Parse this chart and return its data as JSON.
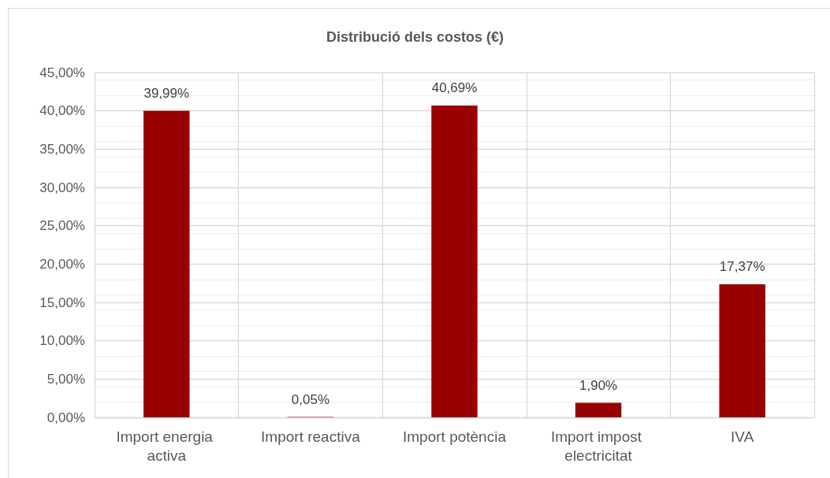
{
  "chart_data": {
    "type": "bar",
    "title": "Distribució dels costos (€)",
    "categories": [
      "Import energia activa",
      "Import reactiva",
      "Import potència",
      "Import impost electricitat",
      "IVA"
    ],
    "values": [
      39.99,
      0.05,
      40.69,
      1.9,
      17.37
    ],
    "value_labels": [
      "39,99%",
      "0,05%",
      "40,69%",
      "1,90%",
      "17,37%"
    ],
    "color": "#990000",
    "ylim": [
      0,
      45
    ],
    "yticks": [
      {
        "value": 0,
        "label": "0,00%"
      },
      {
        "value": 5,
        "label": "5,00%"
      },
      {
        "value": 10,
        "label": "10,00%"
      },
      {
        "value": 15,
        "label": "15,00%"
      },
      {
        "value": 20,
        "label": "20,00%"
      },
      {
        "value": 25,
        "label": "25,00%"
      },
      {
        "value": 30,
        "label": "30,00%"
      },
      {
        "value": 35,
        "label": "35,00%"
      },
      {
        "value": 40,
        "label": "40,00%"
      },
      {
        "value": 45,
        "label": "45,00%"
      }
    ],
    "grid": true
  }
}
